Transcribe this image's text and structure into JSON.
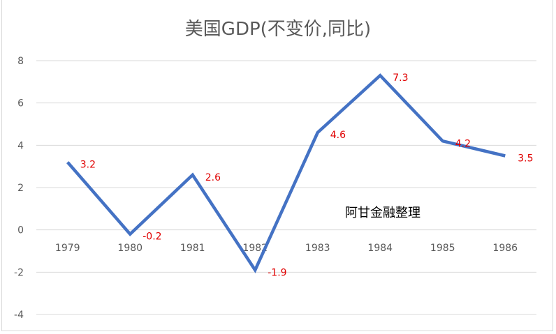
{
  "chart_data": {
    "type": "line",
    "title": "美国GDP(不变价,同比)",
    "xlabel": "",
    "ylabel": "",
    "categories": [
      "1979",
      "1980",
      "1981",
      "1982",
      "1983",
      "1984",
      "1985",
      "1986"
    ],
    "series": [
      {
        "name": "美国GDP同比",
        "values": [
          3.2,
          -0.2,
          2.6,
          -1.9,
          4.6,
          7.3,
          4.2,
          3.5
        ],
        "color": "#4472c4"
      }
    ],
    "data_labels": [
      "3.2",
      "-0.2",
      "2.6",
      "-1.9",
      "4.6",
      "7.3",
      "4.2",
      "3.5"
    ],
    "label_color": "#e00000",
    "ylim": [
      -4,
      8
    ],
    "yticks": [
      8,
      6,
      4,
      2,
      0,
      -2,
      -4
    ],
    "grid": true,
    "legend": "none",
    "annotation": "阿甘金融整理"
  }
}
